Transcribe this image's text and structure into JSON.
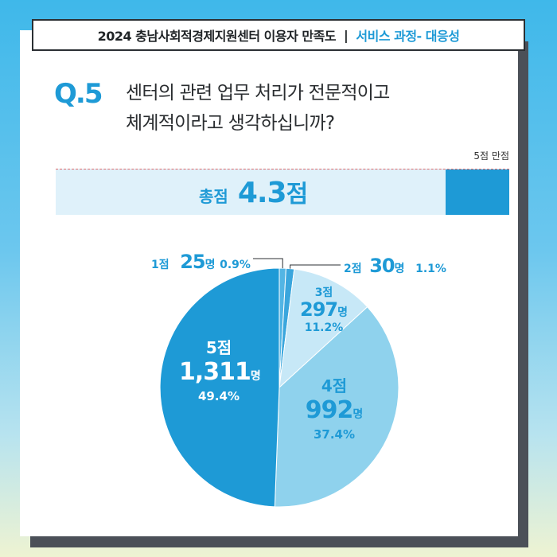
{
  "title": {
    "main": "2024 충남사회적경제지원센터 이용자 만족도",
    "separator": "|",
    "accent": "서비스 과정- 대응성"
  },
  "question": {
    "number": "Q.5",
    "line1": "센터의 관련 업무 처리가 전문적이고",
    "line2": "체계적이라고 생각하십니까?"
  },
  "score": {
    "full_label": "5점 만점",
    "label": "총점",
    "value": "4.3",
    "unit": "점",
    "max": 5
  },
  "chart_data": {
    "type": "pie",
    "slices": [
      {
        "label": "1점",
        "count": "25",
        "unit": "명",
        "percent": "0.9%",
        "value": 0.9,
        "color": "#53b5e4"
      },
      {
        "label": "2점",
        "count": "30",
        "unit": "명",
        "percent": "1.1%",
        "value": 1.1,
        "color": "#3aa6dd"
      },
      {
        "label": "3점",
        "count": "297",
        "unit": "명",
        "percent": "11.2%",
        "value": 11.2,
        "color": "#c7e8f7"
      },
      {
        "label": "4점",
        "count": "992",
        "unit": "명",
        "percent": "37.4%",
        "value": 37.4,
        "color": "#8fd2ed"
      },
      {
        "label": "5점",
        "count": "1,311",
        "unit": "명",
        "percent": "49.4%",
        "value": 49.4,
        "color": "#1e9ad6"
      }
    ]
  },
  "colors": {
    "accent": "#1e9ad6",
    "dark": "#2b2f33"
  }
}
